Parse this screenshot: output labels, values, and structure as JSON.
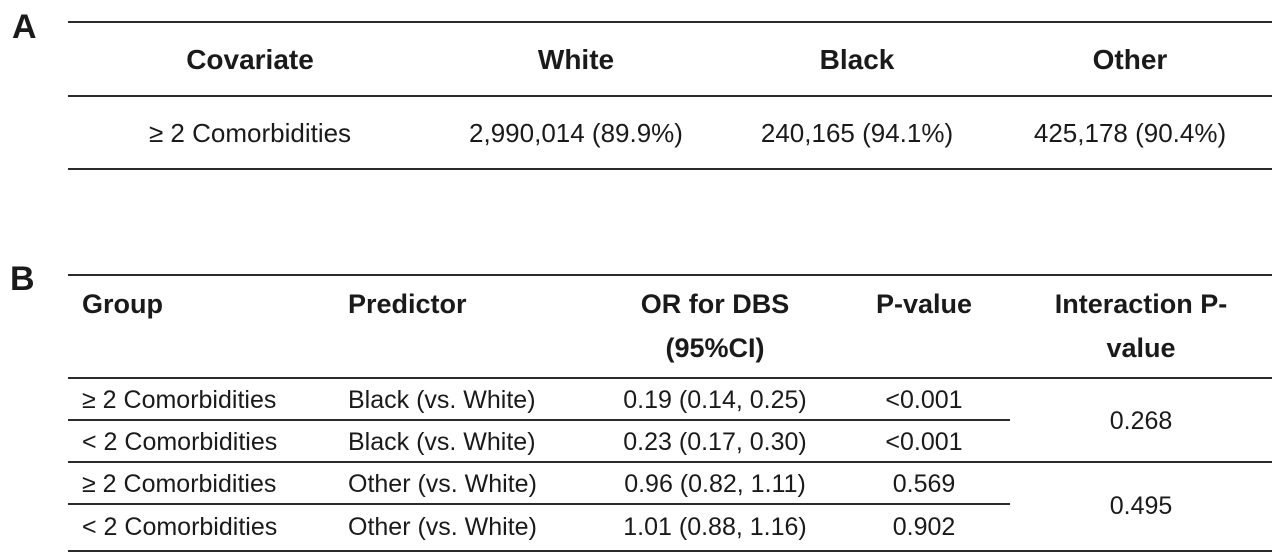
{
  "panel_a": {
    "letter": "A",
    "headers": [
      "Covariate",
      "White",
      "Black",
      "Other"
    ],
    "row": [
      "≥ 2 Comorbidities",
      "2,990,014 (89.9%)",
      "240,165 (94.1%)",
      "425,178 (90.4%)"
    ]
  },
  "panel_b": {
    "letter": "B",
    "headers": {
      "group": "Group",
      "predictor": "Predictor",
      "or_line1": "OR for DBS",
      "or_line2": "(95%CI)",
      "pvalue": "P-value",
      "interaction_line1": "Interaction P-",
      "interaction_line2": "value"
    },
    "rows": [
      {
        "group": "≥ 2 Comorbidities",
        "predictor": "Black (vs. White)",
        "or": "0.19 (0.14, 0.25)",
        "p": "<0.001"
      },
      {
        "group": "< 2 Comorbidities",
        "predictor": "Black (vs. White)",
        "or": "0.23 (0.17, 0.30)",
        "p": "<0.001"
      },
      {
        "group": "≥ 2 Comorbidities",
        "predictor": "Other (vs. White)",
        "or": "0.96 (0.82, 1.11)",
        "p": "0.569"
      },
      {
        "group": "< 2 Comorbidities",
        "predictor": "Other (vs. White)",
        "or": "1.01 (0.88, 1.16)",
        "p": "0.902"
      }
    ],
    "interaction_values": [
      "0.268",
      "0.495"
    ]
  }
}
